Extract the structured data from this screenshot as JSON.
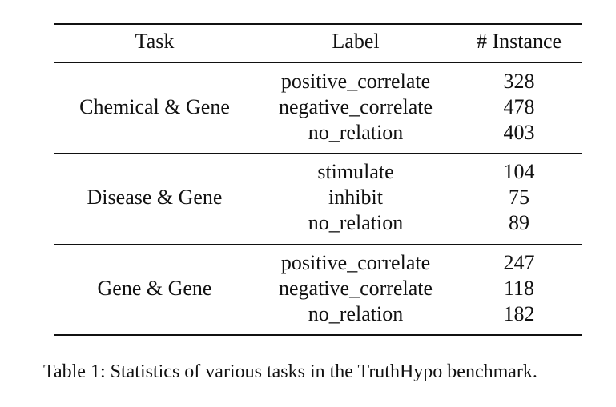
{
  "table": {
    "headers": {
      "task": "Task",
      "label": "Label",
      "count": "# Instance"
    },
    "groups": [
      {
        "task": "Chemical & Gene",
        "rows": [
          {
            "label": "positive_correlate",
            "count": "328"
          },
          {
            "label": "negative_correlate",
            "count": "478"
          },
          {
            "label": "no_relation",
            "count": "403"
          }
        ]
      },
      {
        "task": "Disease & Gene",
        "rows": [
          {
            "label": "stimulate",
            "count": "104"
          },
          {
            "label": "inhibit",
            "count": "75"
          },
          {
            "label": "no_relation",
            "count": "89"
          }
        ]
      },
      {
        "task": "Gene & Gene",
        "rows": [
          {
            "label": "positive_correlate",
            "count": "247"
          },
          {
            "label": "negative_correlate",
            "count": "118"
          },
          {
            "label": "no_relation",
            "count": "182"
          }
        ]
      }
    ]
  },
  "caption": "Table 1: Statistics of various tasks in the TruthHypo benchmark."
}
